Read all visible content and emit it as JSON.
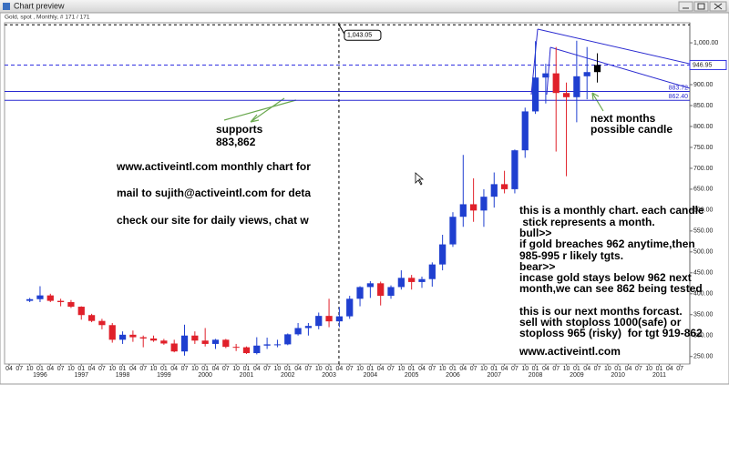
{
  "window_title": "Chart preview",
  "chart_data": {
    "type": "candlestick",
    "subtitle": "Gold, spot , Monthly, # 171 / 171",
    "x": [
      1995.75,
      1996,
      1996.25,
      1996.5,
      1996.75,
      1997,
      1997.25,
      1997.5,
      1997.75,
      1998,
      1998.25,
      1998.5,
      1998.75,
      1999,
      1999.25,
      1999.5,
      1999.75,
      2000,
      2000.25,
      2000.5,
      2000.75,
      2001,
      2001.25,
      2001.5,
      2001.75,
      2002,
      2002.25,
      2002.5,
      2002.75,
      2003,
      2003.25,
      2003.5,
      2003.75,
      2004,
      2004.25,
      2004.5,
      2004.75,
      2005,
      2005.25,
      2005.5,
      2005.75,
      2006,
      2006.25,
      2006.5,
      2006.75,
      2007,
      2007.25,
      2007.5,
      2007.75,
      2008,
      2008.25,
      2008.5,
      2008.75,
      2009,
      2009.25,
      2009.5
    ],
    "open": [
      383,
      387,
      396,
      383,
      380,
      369,
      349,
      335,
      325,
      290,
      302,
      296,
      293,
      288,
      281,
      262,
      300,
      288,
      280,
      290,
      273,
      272,
      258,
      276,
      279,
      279,
      303,
      318,
      323,
      347,
      334,
      346,
      388,
      416,
      425,
      395,
      416,
      438,
      428,
      435,
      470,
      518,
      584,
      614,
      599,
      632,
      662,
      650,
      743,
      836,
      917,
      927,
      880,
      870,
      920,
      930
    ],
    "high": [
      390,
      418,
      400,
      388,
      385,
      370,
      352,
      340,
      330,
      310,
      312,
      300,
      300,
      292,
      290,
      326,
      310,
      318,
      292,
      292,
      280,
      274,
      296,
      295,
      290,
      305,
      330,
      330,
      355,
      388,
      368,
      395,
      418,
      430,
      429,
      420,
      456,
      445,
      441,
      475,
      541,
      595,
      732,
      676,
      650,
      690,
      694,
      745,
      845,
      1004,
      950,
      990,
      905,
      1005,
      990,
      975
    ],
    "low": [
      380,
      380,
      380,
      370,
      366,
      338,
      332,
      315,
      283,
      280,
      285,
      272,
      285,
      278,
      260,
      252,
      280,
      274,
      268,
      270,
      263,
      256,
      255,
      268,
      272,
      277,
      300,
      300,
      315,
      320,
      320,
      340,
      370,
      390,
      372,
      388,
      410,
      410,
      414,
      417,
      456,
      512,
      560,
      572,
      560,
      606,
      640,
      640,
      725,
      830,
      855,
      740,
      681,
      810,
      865,
      905
    ],
    "close": [
      387,
      396,
      383,
      380,
      369,
      349,
      335,
      325,
      290,
      302,
      296,
      293,
      288,
      281,
      262,
      300,
      288,
      280,
      290,
      273,
      272,
      258,
      276,
      279,
      279,
      303,
      318,
      323,
      347,
      334,
      346,
      388,
      416,
      425,
      395,
      416,
      438,
      428,
      435,
      470,
      518,
      584,
      614,
      599,
      632,
      662,
      650,
      743,
      836,
      917,
      927,
      880,
      870,
      920,
      930,
      946.95
    ],
    "up_color": "#1f3fd0",
    "down_color": "#e0202a",
    "xlim": [
      1995.14,
      2011.74
    ],
    "ylim": [
      232,
      1048
    ],
    "yticks": [
      {
        "value": 250,
        "label": "250.00"
      },
      {
        "value": 300,
        "label": "300.00"
      },
      {
        "value": 350,
        "label": "350.00"
      },
      {
        "value": 400,
        "label": "400.00"
      },
      {
        "value": 450,
        "label": "450.00"
      },
      {
        "value": 500,
        "label": "500.00"
      },
      {
        "value": 550,
        "label": "550.00"
      },
      {
        "value": 600,
        "label": "600.00"
      },
      {
        "value": 650,
        "label": "650.00"
      },
      {
        "value": 700,
        "label": "700.00"
      },
      {
        "value": 750,
        "label": "750.00"
      },
      {
        "value": 800,
        "label": "800.00"
      },
      {
        "value": 850,
        "label": "850.00"
      },
      {
        "value": 900,
        "label": "900.00"
      },
      {
        "value": 950,
        "label": "950.00"
      },
      {
        "value": 1000,
        "label": "1,000.00"
      }
    ],
    "xticks": [
      {
        "value": 1995.25,
        "label": "04"
      },
      {
        "value": 1995.5,
        "label": "07"
      },
      {
        "value": 1995.75,
        "label": "10"
      },
      {
        "value": 1996,
        "label": "01"
      },
      {
        "value": 1996.25,
        "label": "04"
      },
      {
        "value": 1996.5,
        "label": "07"
      },
      {
        "value": 1996.75,
        "label": "10"
      },
      {
        "value": 1997,
        "label": "01"
      },
      {
        "value": 1997.25,
        "label": "04"
      },
      {
        "value": 1997.5,
        "label": "07"
      },
      {
        "value": 1997.75,
        "label": "10"
      },
      {
        "value": 1998,
        "label": "01"
      },
      {
        "value": 1998.25,
        "label": "04"
      },
      {
        "value": 1998.5,
        "label": "07"
      },
      {
        "value": 1998.75,
        "label": "10"
      },
      {
        "value": 1999,
        "label": "01"
      },
      {
        "value": 1999.25,
        "label": "04"
      },
      {
        "value": 1999.5,
        "label": "07"
      },
      {
        "value": 1999.75,
        "label": "10"
      },
      {
        "value": 2000,
        "label": "01"
      },
      {
        "value": 2000.25,
        "label": "04"
      },
      {
        "value": 2000.5,
        "label": "07"
      },
      {
        "value": 2000.75,
        "label": "10"
      },
      {
        "value": 2001,
        "label": "01"
      },
      {
        "value": 2001.25,
        "label": "04"
      },
      {
        "value": 2001.5,
        "label": "07"
      },
      {
        "value": 2001.75,
        "label": "10"
      },
      {
        "value": 2002,
        "label": "01"
      },
      {
        "value": 2002.25,
        "label": "04"
      },
      {
        "value": 2002.5,
        "label": "07"
      },
      {
        "value": 2002.75,
        "label": "10"
      },
      {
        "value": 2003,
        "label": "01"
      },
      {
        "value": 2003.25,
        "label": "04"
      },
      {
        "value": 2003.5,
        "label": "07"
      },
      {
        "value": 2003.75,
        "label": "10"
      },
      {
        "value": 2004,
        "label": "01"
      },
      {
        "value": 2004.25,
        "label": "04"
      },
      {
        "value": 2004.5,
        "label": "07"
      },
      {
        "value": 2004.75,
        "label": "10"
      },
      {
        "value": 2005,
        "label": "01"
      },
      {
        "value": 2005.25,
        "label": "04"
      },
      {
        "value": 2005.5,
        "label": "07"
      },
      {
        "value": 2005.75,
        "label": "10"
      },
      {
        "value": 2006,
        "label": "01"
      },
      {
        "value": 2006.25,
        "label": "04"
      },
      {
        "value": 2006.5,
        "label": "07"
      },
      {
        "value": 2006.75,
        "label": "10"
      },
      {
        "value": 2007,
        "label": "01"
      },
      {
        "value": 2007.25,
        "label": "04"
      },
      {
        "value": 2007.5,
        "label": "07"
      },
      {
        "value": 2007.75,
        "label": "10"
      },
      {
        "value": 2008,
        "label": "01"
      },
      {
        "value": 2008.25,
        "label": "04"
      },
      {
        "value": 2008.5,
        "label": "07"
      },
      {
        "value": 2008.75,
        "label": "10"
      },
      {
        "value": 2009,
        "label": "01"
      },
      {
        "value": 2009.25,
        "label": "04"
      },
      {
        "value": 2009.5,
        "label": "07"
      },
      {
        "value": 2009.75,
        "label": "10"
      },
      {
        "value": 2010,
        "label": "01"
      },
      {
        "value": 2010.25,
        "label": "04"
      },
      {
        "value": 2010.5,
        "label": "07"
      },
      {
        "value": 2010.75,
        "label": "10"
      },
      {
        "value": 2011,
        "label": "01"
      },
      {
        "value": 2011.25,
        "label": "04"
      },
      {
        "value": 2011.5,
        "label": "07"
      }
    ],
    "year_labels": [
      1996,
      1997,
      1998,
      1999,
      2000,
      2001,
      2002,
      2003,
      2004,
      2005,
      2006,
      2007,
      2008,
      2009,
      2010,
      2011
    ],
    "hlines": [
      883.72,
      {
        "value": 862.4,
        "label": "862.40"
      }
    ],
    "hline_color": "#2a2ad0",
    "last_price": {
      "value": 946.95,
      "label": "946.95"
    },
    "crosshair": {
      "x": 2003.24,
      "value": 1043.05,
      "label": "1,043.05"
    },
    "notes_supports": [
      "supports",
      "883,862"
    ],
    "notes_left": [
      "www.activeintl.com monthly chart for",
      "mail to sujith@activeintl.com for deta",
      "check our site for daily views, chat w"
    ],
    "notes_right": [
      "this is a monthly chart. each candle",
      " stick represents a month.",
      "bull>>",
      "if gold breaches 962 anytime,then",
      "985-995 r likely tgts.",
      "bear>>",
      "incase gold stays below 962 next",
      "month,we can see 862 being tested",
      "this is our next months forcast.",
      "sell with stoploss 1000(safe) or",
      "stoploss 965 (risky)  for tgt 919-862",
      "www.activeintl.com"
    ],
    "notes_candle": [
      "next months",
      "possible candle"
    ]
  }
}
